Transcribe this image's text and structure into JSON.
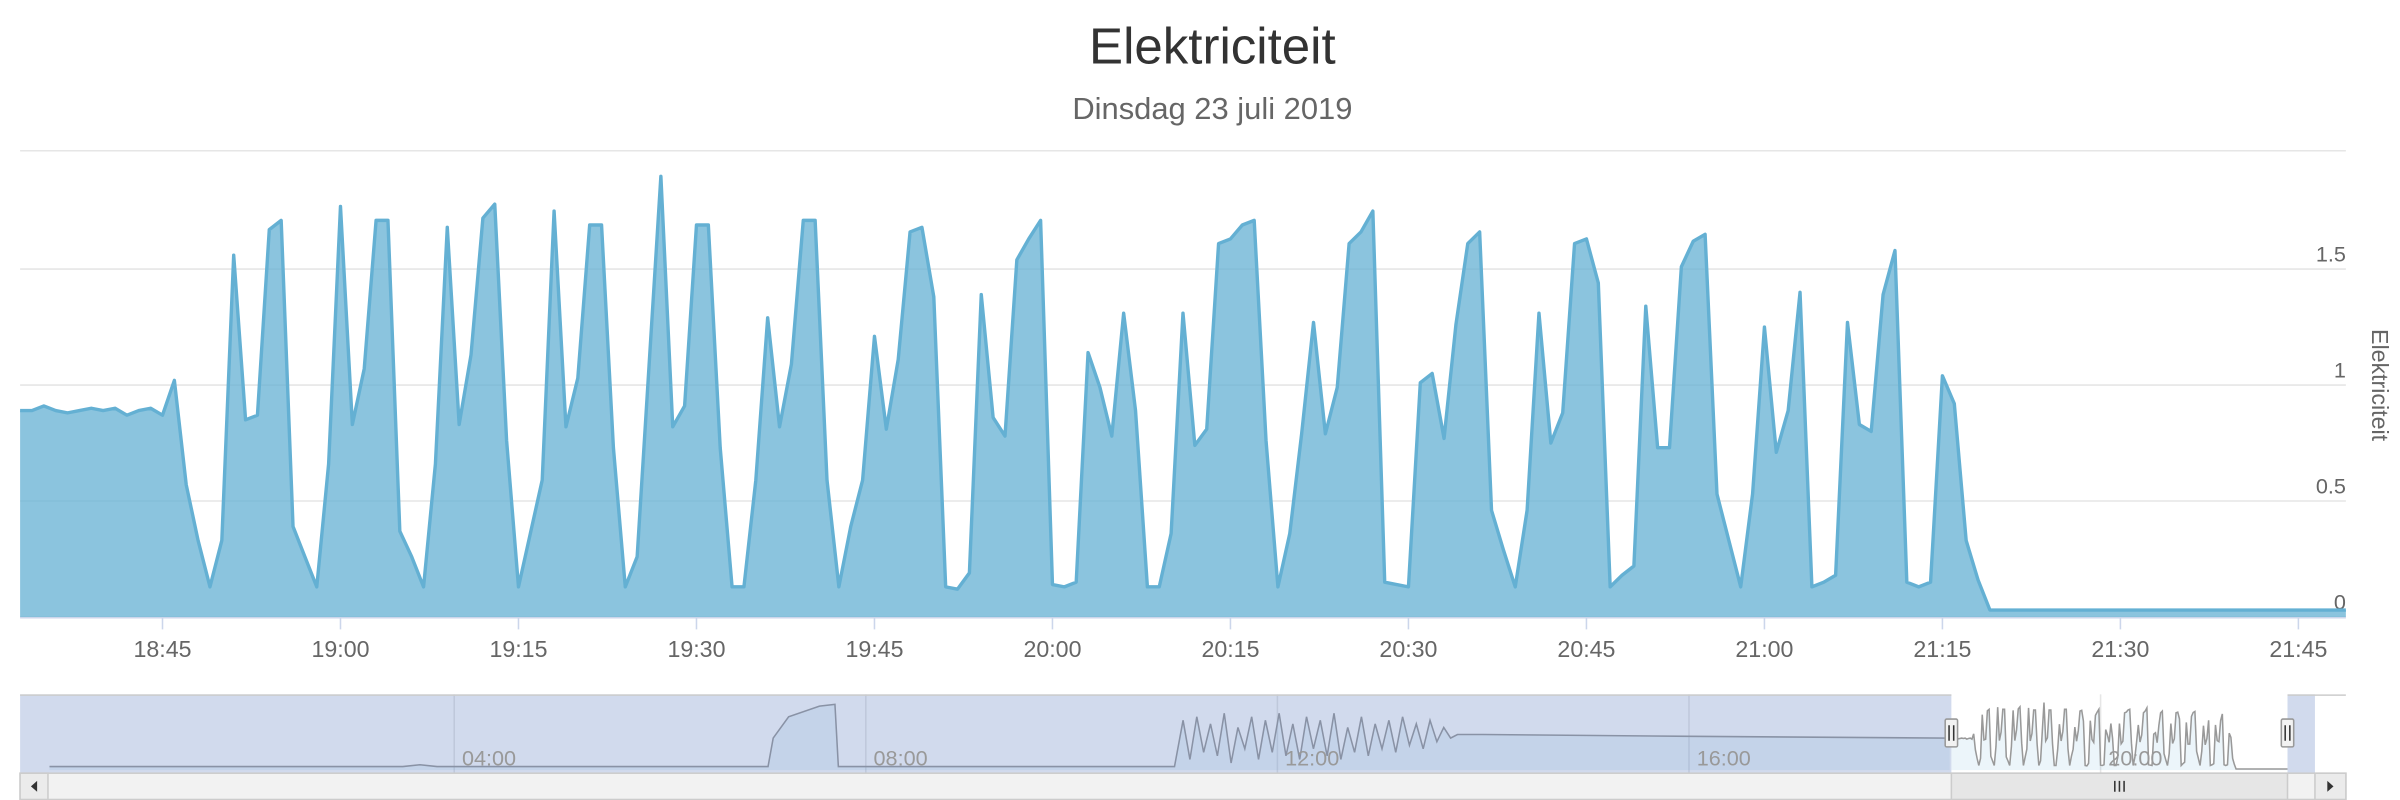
{
  "chart_data": {
    "type": "area",
    "title": "Elektriciteit",
    "subtitle": "Dinsdag 23 juli 2019",
    "ylabel": "Elektriciteit",
    "color": "#64b0d3",
    "xlim": [
      "18:33",
      "21:49"
    ],
    "xticks": [
      "18:45",
      "19:00",
      "19:15",
      "19:30",
      "19:45",
      "20:00",
      "20:15",
      "20:30",
      "20:45",
      "21:00",
      "21:15",
      "21:30",
      "21:45"
    ],
    "ylim": [
      0,
      2
    ],
    "yticks": [
      0,
      0.5,
      1,
      1.5
    ],
    "grid": true,
    "x": [
      "18:33",
      "18:34",
      "18:35",
      "18:36",
      "18:37",
      "18:38",
      "18:39",
      "18:40",
      "18:41",
      "18:42",
      "18:43",
      "18:44",
      "18:45",
      "18:46",
      "18:47",
      "18:48",
      "18:49",
      "18:50",
      "18:51",
      "18:52",
      "18:53",
      "18:54",
      "18:55",
      "18:56",
      "18:57",
      "18:58",
      "18:59",
      "19:00",
      "19:01",
      "19:02",
      "19:03",
      "19:04",
      "19:05",
      "19:06",
      "19:07",
      "19:08",
      "19:09",
      "19:10",
      "19:11",
      "19:12",
      "19:13",
      "19:14",
      "19:15",
      "19:16",
      "19:17",
      "19:18",
      "19:19",
      "19:20",
      "19:21",
      "19:22",
      "19:23",
      "19:24",
      "19:25",
      "19:26",
      "19:27",
      "19:28",
      "19:29",
      "19:30",
      "19:31",
      "19:32",
      "19:33",
      "19:34",
      "19:35",
      "19:36",
      "19:37",
      "19:38",
      "19:39",
      "19:40",
      "19:41",
      "19:42",
      "19:43",
      "19:44",
      "19:45",
      "19:46",
      "19:47",
      "19:48",
      "19:49",
      "19:50",
      "19:51",
      "19:52",
      "19:53",
      "19:54",
      "19:55",
      "19:56",
      "19:57",
      "19:58",
      "19:59",
      "20:00",
      "20:01",
      "20:02",
      "20:03",
      "20:04",
      "20:05",
      "20:06",
      "20:07",
      "20:08",
      "20:09",
      "20:10",
      "20:11",
      "20:12",
      "20:13",
      "20:14",
      "20:15",
      "20:16",
      "20:17",
      "20:18",
      "20:19",
      "20:20",
      "20:21",
      "20:22",
      "20:23",
      "20:24",
      "20:25",
      "20:26",
      "20:27",
      "20:28",
      "20:29",
      "20:30",
      "20:31",
      "20:32",
      "20:33",
      "20:34",
      "20:35",
      "20:36",
      "20:37",
      "20:38",
      "20:39",
      "20:40",
      "20:41",
      "20:42",
      "20:43",
      "20:44",
      "20:45",
      "20:46",
      "20:47",
      "20:48",
      "20:49",
      "20:50",
      "20:51",
      "20:52",
      "20:53",
      "20:54",
      "20:55",
      "20:56",
      "20:57",
      "20:58",
      "20:59",
      "21:00",
      "21:01",
      "21:02",
      "21:03",
      "21:04",
      "21:05",
      "21:06",
      "21:07",
      "21:08",
      "21:09",
      "21:10",
      "21:11",
      "21:12",
      "21:13",
      "21:14",
      "21:15",
      "21:16",
      "21:17",
      "21:18",
      "21:19",
      "21:49"
    ],
    "values": [
      0.89,
      0.89,
      0.91,
      0.89,
      0.88,
      0.89,
      0.9,
      0.89,
      0.9,
      0.87,
      0.89,
      0.9,
      0.87,
      1.02,
      0.57,
      0.33,
      0.13,
      0.33,
      1.56,
      0.85,
      0.87,
      1.67,
      1.71,
      0.39,
      0.26,
      0.13,
      0.66,
      1.77,
      0.83,
      1.07,
      1.71,
      1.71,
      0.37,
      0.26,
      0.13,
      0.66,
      1.68,
      0.83,
      1.13,
      1.72,
      1.78,
      0.76,
      0.13,
      0.36,
      0.59,
      1.75,
      0.82,
      1.03,
      1.69,
      1.69,
      0.73,
      0.13,
      0.26,
      1.08,
      1.9,
      0.82,
      0.91,
      1.69,
      1.69,
      0.73,
      0.13,
      0.13,
      0.59,
      1.29,
      0.82,
      1.09,
      1.71,
      1.71,
      0.59,
      0.13,
      0.39,
      0.59,
      1.21,
      0.81,
      1.11,
      1.66,
      1.68,
      1.38,
      0.13,
      0.12,
      0.19,
      1.39,
      0.86,
      0.78,
      1.54,
      1.63,
      1.71,
      0.14,
      0.13,
      0.15,
      1.14,
      0.99,
      0.78,
      1.31,
      0.89,
      0.13,
      0.13,
      0.36,
      1.31,
      0.74,
      0.81,
      1.61,
      1.63,
      1.69,
      1.71,
      0.76,
      0.13,
      0.36,
      0.79,
      1.27,
      0.79,
      0.99,
      1.61,
      1.66,
      1.75,
      0.15,
      0.14,
      0.13,
      1.01,
      1.05,
      0.77,
      1.26,
      1.61,
      1.66,
      0.46,
      0.29,
      0.13,
      0.46,
      1.31,
      0.75,
      0.88,
      1.61,
      1.63,
      1.44,
      0.13,
      0.18,
      0.22,
      1.34,
      0.73,
      0.73,
      1.51,
      1.62,
      1.65,
      0.53,
      0.33,
      0.13,
      0.53,
      1.25,
      0.71,
      0.89,
      1.4,
      0.13,
      0.15,
      0.18,
      1.27,
      0.83,
      0.8,
      1.39,
      1.58,
      0.15,
      0.13,
      0.15,
      1.04,
      0.92,
      0.33,
      0.16,
      0.03,
      0.03
    ],
    "navigator": {
      "xlim": [
        "00:04",
        "22:05"
      ],
      "ylim": [
        0,
        2
      ],
      "xticks": [
        "04:00",
        "08:00",
        "12:00",
        "16:00",
        "20:00"
      ],
      "x": [
        "00:04",
        "03:30",
        "03:40",
        "03:50",
        "07:03",
        "07:06",
        "07:15",
        "07:33",
        "07:42",
        "07:44",
        "11:00",
        "11:05",
        "11:09",
        "11:13",
        "11:17",
        "11:21",
        "11:25",
        "11:29",
        "11:33",
        "11:37",
        "11:41",
        "11:45",
        "11:49",
        "11:53",
        "11:57",
        "12:01",
        "12:05",
        "12:09",
        "12:13",
        "12:17",
        "12:21",
        "12:25",
        "12:29",
        "12:33",
        "12:37",
        "12:41",
        "12:45",
        "12:49",
        "12:53",
        "12:57",
        "13:01",
        "13:05",
        "13:09",
        "13:13",
        "13:17",
        "13:21",
        "13:25",
        "13:29",
        "13:33",
        "13:37",
        "13:41",
        "13:45",
        "14:00",
        "16:00",
        "18:32"
      ],
      "values": [
        0.1,
        0.1,
        0.15,
        0.1,
        0.1,
        0.9,
        1.5,
        1.8,
        1.85,
        0.1,
        0.1,
        1.4,
        0.3,
        1.5,
        0.5,
        1.3,
        0.4,
        1.6,
        0.2,
        1.2,
        0.6,
        1.5,
        0.3,
        1.4,
        0.5,
        1.6,
        0.4,
        1.3,
        0.3,
        1.5,
        0.6,
        1.4,
        0.4,
        1.6,
        0.3,
        1.2,
        0.5,
        1.5,
        0.4,
        1.3,
        0.6,
        1.4,
        0.5,
        1.5,
        0.7,
        1.3,
        0.6,
        1.4,
        0.8,
        1.2,
        0.9,
        1.0,
        1.0,
        0.95,
        0.9
      ]
    }
  }
}
